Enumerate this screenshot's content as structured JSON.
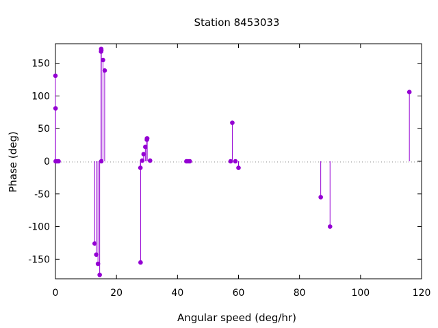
{
  "chart_data": {
    "type": "scatter",
    "style": "impulses-with-points",
    "title": "Station 8453033",
    "xlabel": "Angular speed (deg/hr)",
    "ylabel": "Phase (deg)",
    "xlim": [
      0,
      120
    ],
    "ylim": [
      -180,
      180
    ],
    "xticks": [
      0,
      20,
      40,
      60,
      80,
      100,
      120
    ],
    "yticks": [
      -150,
      -100,
      -50,
      0,
      50,
      100,
      150
    ],
    "grid": false,
    "zero_line": "dotted",
    "color": "#9400d3",
    "points": [
      {
        "x": 0.0,
        "y": 131
      },
      {
        "x": 0.04,
        "y": 81
      },
      {
        "x": 0.08,
        "y": 0
      },
      {
        "x": 0.54,
        "y": 0
      },
      {
        "x": 1.02,
        "y": 0
      },
      {
        "x": 12.85,
        "y": -126
      },
      {
        "x": 13.4,
        "y": -143
      },
      {
        "x": 13.94,
        "y": -157
      },
      {
        "x": 14.5,
        "y": -174
      },
      {
        "x": 14.96,
        "y": 168
      },
      {
        "x": 15.0,
        "y": 172
      },
      {
        "x": 15.04,
        "y": 170
      },
      {
        "x": 15.04,
        "y": 0
      },
      {
        "x": 15.59,
        "y": 155
      },
      {
        "x": 16.14,
        "y": 139
      },
      {
        "x": 27.85,
        "y": -10
      },
      {
        "x": 27.9,
        "y": -155
      },
      {
        "x": 28.44,
        "y": 1
      },
      {
        "x": 28.9,
        "y": 11
      },
      {
        "x": 29.46,
        "y": 22
      },
      {
        "x": 29.96,
        "y": 33
      },
      {
        "x": 30.0,
        "y": 35
      },
      {
        "x": 30.08,
        "y": 35
      },
      {
        "x": 31.02,
        "y": 1
      },
      {
        "x": 42.93,
        "y": 0
      },
      {
        "x": 43.48,
        "y": 0
      },
      {
        "x": 44.03,
        "y": 0
      },
      {
        "x": 57.42,
        "y": 0
      },
      {
        "x": 57.97,
        "y": 59
      },
      {
        "x": 58.98,
        "y": 0
      },
      {
        "x": 60.0,
        "y": -10
      },
      {
        "x": 86.95,
        "y": -55
      },
      {
        "x": 90.0,
        "y": -100
      },
      {
        "x": 116.0,
        "y": 106
      }
    ]
  }
}
